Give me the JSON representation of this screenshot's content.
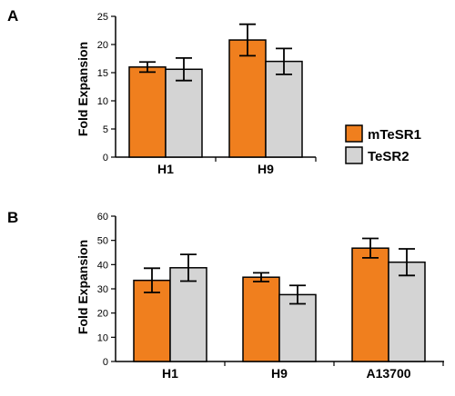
{
  "chart_data": [
    {
      "type": "bar",
      "panel": "A",
      "categories": [
        "H1",
        "H9"
      ],
      "series": [
        {
          "name": "mTeSR1",
          "values": [
            16.0,
            20.8
          ],
          "error": [
            0.9,
            2.8
          ]
        },
        {
          "name": "TeSR2",
          "values": [
            15.6,
            17.0
          ],
          "error": [
            2.0,
            2.3
          ]
        }
      ],
      "ylabel": "Fold Expansion",
      "ylim": [
        0,
        25
      ],
      "yticks": [
        0,
        5,
        10,
        15,
        20,
        25
      ],
      "legend": "right",
      "grid": false
    },
    {
      "type": "bar",
      "panel": "B",
      "categories": [
        "H1",
        "H9",
        "A13700"
      ],
      "series": [
        {
          "name": "mTeSR1",
          "values": [
            33.5,
            34.8,
            46.8
          ],
          "error": [
            5.0,
            1.8,
            4.0
          ]
        },
        {
          "name": "TeSR2",
          "values": [
            38.7,
            27.6,
            41.0
          ],
          "error": [
            5.5,
            3.8,
            5.5
          ]
        }
      ],
      "ylabel": "Fold Expansion",
      "ylim": [
        0,
        60
      ],
      "yticks": [
        0,
        10,
        20,
        30,
        40,
        50,
        60
      ],
      "grid": false
    }
  ],
  "legend": {
    "items": [
      {
        "label": "mTeSR1",
        "color": "#f07f1e"
      },
      {
        "label": "TeSR2",
        "color": "#d4d4d4"
      }
    ]
  },
  "colors": {
    "mTeSR1": "#f07f1e",
    "TeSR2": "#d4d4d4",
    "axis": "#000000"
  }
}
